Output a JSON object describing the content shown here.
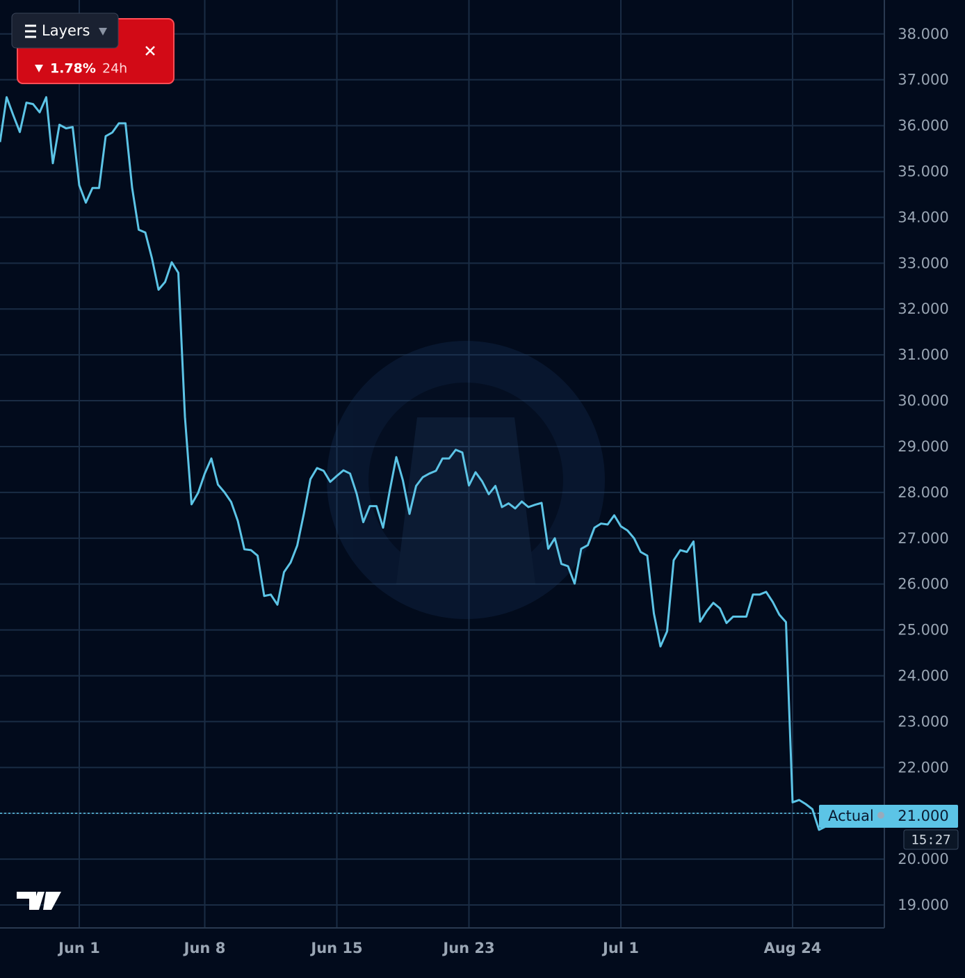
{
  "chart_data": {
    "type": "line",
    "categories": [
      null,
      null,
      null,
      null,
      null,
      null,
      null,
      null,
      null,
      null,
      null,
      null,
      "Jun 1",
      null,
      null,
      null,
      null,
      null,
      null,
      null,
      null,
      null,
      null,
      null,
      null,
      null,
      null,
      null,
      null,
      null,
      null,
      "Jun 8",
      null,
      null,
      null,
      null,
      null,
      null,
      null,
      null,
      null,
      null,
      null,
      null,
      null,
      null,
      null,
      null,
      null,
      null,
      null,
      "Jun 15",
      null,
      null,
      null,
      null,
      null,
      null,
      null,
      null,
      null,
      null,
      null,
      null,
      null,
      null,
      null,
      null,
      null,
      null,
      null,
      "Jun 23",
      null,
      null,
      null,
      null,
      null,
      null,
      null,
      null,
      null,
      null,
      null,
      null,
      null,
      null,
      null,
      null,
      null,
      null,
      null,
      null,
      null,
      null,
      "Jul 1",
      null,
      null,
      null,
      null,
      null,
      null,
      null,
      null,
      null,
      null,
      null,
      null,
      null,
      null,
      null,
      null,
      null,
      null,
      null,
      null,
      null,
      null,
      null,
      null,
      null,
      "Aug 24",
      null,
      null,
      null,
      null,
      null,
      null,
      null,
      null
    ],
    "values": [
      35640,
      36620,
      36230,
      35860,
      36500,
      36470,
      36290,
      36620,
      35180,
      36020,
      35940,
      35970,
      34700,
      34320,
      34640,
      34640,
      35770,
      35850,
      36050,
      36050,
      34650,
      33730,
      33670,
      33110,
      32420,
      32590,
      33020,
      32790,
      29650,
      27740,
      27990,
      28410,
      28740,
      28170,
      28000,
      27790,
      27380,
      26760,
      26740,
      26620,
      25740,
      25770,
      25550,
      26260,
      26470,
      26840,
      27530,
      28290,
      28530,
      28470,
      28230,
      28360,
      28480,
      28410,
      27970,
      27350,
      27700,
      27700,
      27230,
      28030,
      28770,
      28260,
      27530,
      28140,
      28330,
      28410,
      28470,
      28740,
      28740,
      28930,
      28870,
      28150,
      28440,
      28240,
      27960,
      28140,
      27680,
      27760,
      27650,
      27800,
      27680,
      27730,
      27770,
      26770,
      27000,
      26440,
      26390,
      26010,
      26770,
      26850,
      27230,
      27320,
      27300,
      27500,
      27260,
      27170,
      27000,
      26700,
      26620,
      25360,
      24640,
      24970,
      26520,
      26740,
      26700,
      26930,
      25180,
      25410,
      25590,
      25470,
      25150,
      25290,
      25290,
      25290,
      25770,
      25770,
      25830,
      25610,
      25330,
      25170,
      21240,
      21290,
      21200,
      21090,
      20640,
      20710,
      20970,
      21030,
      21000
    ],
    "color": "#5cc4e6",
    "ylim": [
      18500,
      38740
    ],
    "yticks": [
      {
        "value": 19000,
        "label": "19.000"
      },
      {
        "value": 20000,
        "label": "20.000"
      },
      {
        "value": 21000,
        "label": "21.000"
      },
      {
        "value": 22000,
        "label": "22.000"
      },
      {
        "value": 23000,
        "label": "23.000"
      },
      {
        "value": 24000,
        "label": "24.000"
      },
      {
        "value": 25000,
        "label": "25.000"
      },
      {
        "value": 26000,
        "label": "26.000"
      },
      {
        "value": 27000,
        "label": "27.000"
      },
      {
        "value": 28000,
        "label": "28.000"
      },
      {
        "value": 29000,
        "label": "29.000"
      },
      {
        "value": 30000,
        "label": "30.000"
      },
      {
        "value": 31000,
        "label": "31.000"
      },
      {
        "value": 32000,
        "label": "32.000"
      },
      {
        "value": 33000,
        "label": "33.000"
      },
      {
        "value": 34000,
        "label": "34.000"
      },
      {
        "value": 35000,
        "label": "35.000"
      },
      {
        "value": 36000,
        "label": "36.000"
      },
      {
        "value": 37000,
        "label": "37.000"
      },
      {
        "value": 38000,
        "label": "38.000"
      }
    ],
    "grid": true,
    "price_line": {
      "name": "Actual",
      "value": 21000,
      "label": "21.000"
    },
    "timer": "15:27"
  },
  "widget": {
    "menu": "Layers",
    "change": "1.78%",
    "period": "24h"
  }
}
